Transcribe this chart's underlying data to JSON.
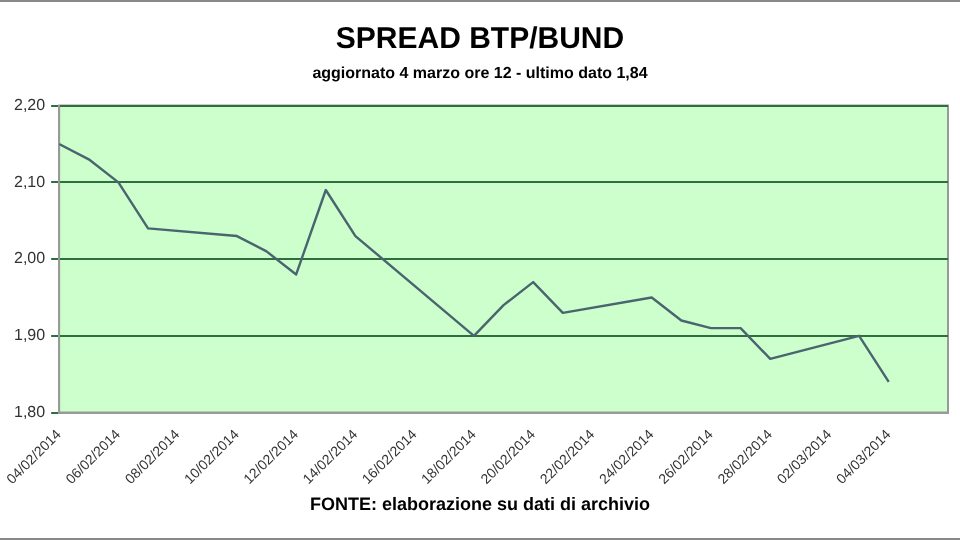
{
  "chart_data": {
    "type": "line",
    "title": "SPREAD BTP/BUND",
    "subtitle": "aggiornato 4 marzo ore 12 - ultimo dato 1,84",
    "x": [
      "2014-02-04",
      "2014-02-05",
      "2014-02-06",
      "2014-02-07",
      "2014-02-10",
      "2014-02-11",
      "2014-02-12",
      "2014-02-13",
      "2014-02-14",
      "2014-02-18",
      "2014-02-19",
      "2014-02-20",
      "2014-02-21",
      "2014-02-24",
      "2014-02-25",
      "2014-02-26",
      "2014-02-27",
      "2014-02-28",
      "2014-03-03",
      "2014-03-04"
    ],
    "series": [
      {
        "color": "#4a6470",
        "values": [
          2.15,
          2.13,
          2.1,
          2.04,
          2.03,
          2.01,
          1.98,
          2.09,
          2.03,
          1.9,
          1.94,
          1.97,
          1.93,
          1.95,
          1.92,
          1.91,
          1.91,
          1.87,
          1.9,
          1.84
        ]
      }
    ],
    "ylim": [
      1.8,
      2.2
    ],
    "yticks": [
      {
        "value": 1.8,
        "label": "1,80"
      },
      {
        "value": 1.9,
        "label": "1,90"
      },
      {
        "value": 2.0,
        "label": "2,00"
      },
      {
        "value": 2.1,
        "label": "2,10"
      },
      {
        "value": 2.2,
        "label": "2,20"
      }
    ],
    "xlim": [
      "2014-02-04",
      "2014-03-06"
    ],
    "xticks": [
      {
        "value": "2014-02-04",
        "label": "04/02/2014"
      },
      {
        "value": "2014-02-06",
        "label": "06/02/2014"
      },
      {
        "value": "2014-02-08",
        "label": "08/02/2014"
      },
      {
        "value": "2014-02-10",
        "label": "10/02/2014"
      },
      {
        "value": "2014-02-12",
        "label": "12/02/2014"
      },
      {
        "value": "2014-02-14",
        "label": "14/02/2014"
      },
      {
        "value": "2014-02-16",
        "label": "16/02/2014"
      },
      {
        "value": "2014-02-18",
        "label": "18/02/2014"
      },
      {
        "value": "2014-02-20",
        "label": "20/02/2014"
      },
      {
        "value": "2014-02-22",
        "label": "22/02/2014"
      },
      {
        "value": "2014-02-24",
        "label": "24/02/2014"
      },
      {
        "value": "2014-02-26",
        "label": "26/02/2014"
      },
      {
        "value": "2014-02-28",
        "label": "28/02/2014"
      },
      {
        "value": "2014-03-02",
        "label": "02/03/2014"
      },
      {
        "value": "2014-03-04",
        "label": "04/03/2014"
      }
    ],
    "grid": "y",
    "legend": false,
    "marker": "none",
    "line_style": "solid",
    "annotations": [
      "FONTE: elaborazione su dati di archivio"
    ]
  }
}
